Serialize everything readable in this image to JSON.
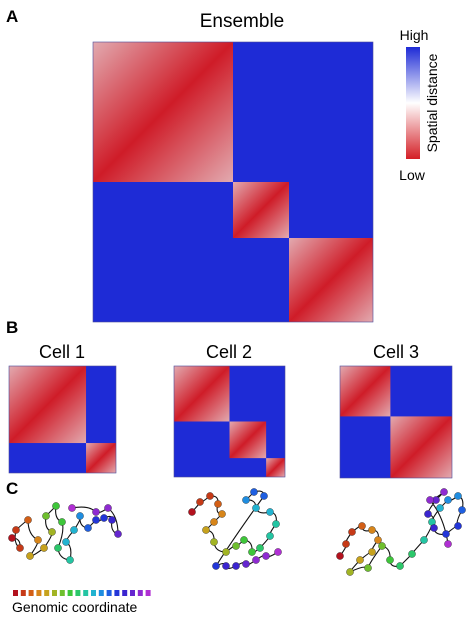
{
  "panels": {
    "a": {
      "letter": "A",
      "title": "Ensemble"
    },
    "b": {
      "letter": "B",
      "cells": [
        "Cell 1",
        "Cell 2",
        "Cell 3"
      ]
    },
    "c": {
      "letter": "C"
    }
  },
  "colorbar": {
    "high": "High",
    "low": "Low",
    "label": "Spatial distance",
    "colors": {
      "low": "#d41f26",
      "mid": "#ffffff",
      "high": "#1e2bd6"
    }
  },
  "genomic_legend": {
    "label": "Genomic coordinate",
    "colors": [
      "#b3121e",
      "#c63a17",
      "#d35f16",
      "#d7851a",
      "#c7a21d",
      "#a2b424",
      "#6fbf2e",
      "#3ec63a",
      "#2bc76a",
      "#24c5a3",
      "#22b3d0",
      "#1f8de0",
      "#1f5fe1",
      "#2336d8",
      "#3b25cf",
      "#6526cf",
      "#8f2bd1",
      "#b02fd3"
    ]
  },
  "domains": {
    "ensemble": [
      0.0,
      0.5,
      0.7,
      1.0
    ],
    "cells": [
      [
        0.0,
        0.72,
        1.0
      ],
      [
        0.0,
        0.5,
        0.83,
        1.0
      ],
      [
        0.0,
        0.45,
        1.0
      ]
    ]
  }
}
